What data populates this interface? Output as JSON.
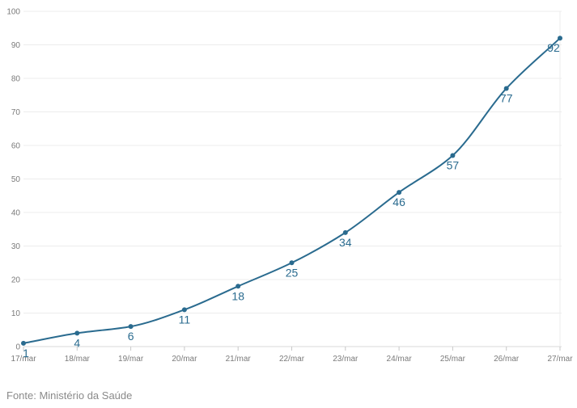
{
  "chart_data": {
    "type": "line",
    "categories": [
      "17/mar",
      "18/mar",
      "19/mar",
      "20/mar",
      "21/mar",
      "22/mar",
      "23/mar",
      "24/mar",
      "25/mar",
      "26/mar",
      "27/mar"
    ],
    "values": [
      1,
      4,
      6,
      11,
      18,
      25,
      34,
      46,
      57,
      77,
      92
    ],
    "data_labels": [
      "1",
      "4",
      "6",
      "11",
      "18",
      "25",
      "34",
      "46",
      "57",
      "77",
      "92"
    ],
    "yticks": [
      "0",
      "10",
      "20",
      "30",
      "40",
      "50",
      "60",
      "70",
      "80",
      "90",
      "100"
    ],
    "ylim": [
      0,
      100
    ],
    "grid": true,
    "title": "",
    "xlabel": "",
    "ylabel": "",
    "colors": {
      "line": "#2a6b8f",
      "labels": "#2a6b8f",
      "grid": "#ececec",
      "ticks": "#7a7a7a"
    }
  },
  "source": "Fonte: Ministério da Saúde"
}
